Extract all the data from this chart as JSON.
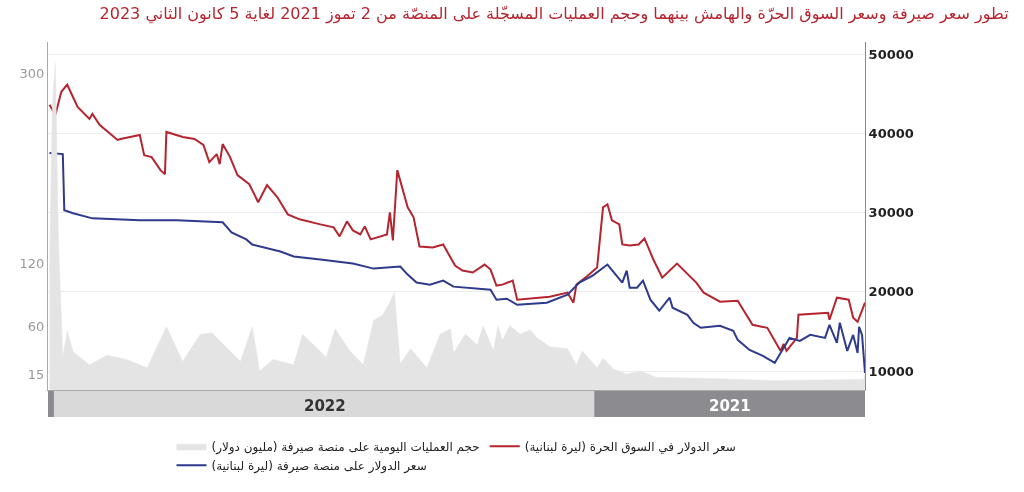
{
  "chart_data": {
    "type": "line",
    "title": "تطور سعر صيرفة وسعر السوق الحرّة والهامش بينهما وحجم العمليات المسجّلة على المنصّة من 2 تموز 2021 لغاية 5 كانون الثاني 2023",
    "xlim": [
      "2023-01-05",
      "2021-07-02"
    ],
    "xticks": [
      {
        "value": "2022-07-02",
        "label": "2022"
      },
      {
        "value": "2021-10-01",
        "label": "2021"
      }
    ],
    "ylim": [
      7600,
      51600
    ],
    "yticks": [
      10000,
      20000,
      30000,
      40000,
      50000
    ],
    "y2lim": [
      0,
      330
    ],
    "y2ticks": [
      15,
      60,
      120,
      300
    ],
    "grid": "y",
    "legend": "bottom",
    "marker": "none",
    "line_style": "solid",
    "series": [
      {
        "name": "حجم العمليات اليومية على منصة صيرفة (مليون دولار)",
        "type": "area",
        "axis": "y2",
        "color": "#e4e4e4",
        "x": [
          "2021-07-02",
          "2021-07-03",
          "2021-09-02",
          "2021-10-17",
          "2021-11-20",
          "2021-12-01",
          "2021-12-10",
          "2021-12-19",
          "2021-12-26",
          "2021-12-30",
          "2022-01-09",
          "2022-01-13",
          "2022-01-19",
          "2022-01-31",
          "2022-02-09",
          "2022-02-13",
          "2022-02-20",
          "2022-02-27",
          "2022-03-04",
          "2022-03-07",
          "2022-03-10",
          "2022-03-17",
          "2022-03-21",
          "2022-03-29",
          "2022-04-06",
          "2022-04-08",
          "2022-04-15",
          "2022-04-24",
          "2022-05-05",
          "2022-05-12",
          "2022-05-16",
          "2022-05-19",
          "2022-05-24",
          "2022-05-30",
          "2022-06-06",
          "2022-06-15",
          "2022-06-25",
          "2022-07-01",
          "2022-07-17",
          "2022-07-23",
          "2022-08-06",
          "2022-08-15",
          "2022-08-20",
          "2022-08-28",
          "2022-09-16",
          "2022-09-24",
          "2022-10-06",
          "2022-10-17",
          "2022-10-30",
          "2022-11-13",
          "2022-11-26",
          "2022-12-08",
          "2022-12-19",
          "2022-12-23",
          "2022-12-26",
          "2022-12-29",
          "2022-12-31",
          "2023-01-02",
          "2023-01-04"
        ],
        "values": [
          14,
          10,
          9,
          11,
          12,
          18,
          15,
          20,
          30,
          21,
          37,
          24,
          39,
          41,
          50,
          57,
          53,
          61,
          47,
          61,
          37,
          61,
          43,
          53,
          35,
          58,
          53,
          21,
          39,
          25,
          93,
          83,
          71,
          66,
          24,
          37,
          58,
          31,
          53,
          24,
          29,
          18,
          60,
          27,
          54,
          53,
          27,
          60,
          21,
          29,
          33,
          24,
          36,
          56,
          31,
          143,
          310,
          272,
          111
        ]
      },
      {
        "name": "سعر الدولار في السوق الحرة (ليرة لبنانية)",
        "color": "#b5252f",
        "x": [
          "2021-07-02",
          "2021-07-07",
          "2021-07-10",
          "2021-07-13",
          "2021-07-21",
          "2021-07-26",
          "2021-07-27",
          "2021-08-06",
          "2021-08-16",
          "2021-08-17",
          "2021-08-24",
          "2021-08-26",
          "2021-08-28",
          "2021-09-06",
          "2021-09-16",
          "2021-09-26",
          "2021-10-08",
          "2021-10-19",
          "2021-10-24",
          "2021-11-06",
          "2021-11-16",
          "2021-11-22",
          "2021-11-28",
          "2021-12-02",
          "2021-12-08",
          "2021-12-13",
          "2021-12-15",
          "2021-12-20",
          "2021-12-23",
          "2021-12-26",
          "2021-12-30",
          "2022-01-06",
          "2022-01-13",
          "2022-01-15",
          "2022-01-19",
          "2022-01-31",
          "2022-02-22",
          "2022-02-25",
          "2022-03-04",
          "2022-03-08",
          "2022-03-12",
          "2022-03-16",
          "2022-03-24",
          "2022-03-31",
          "2022-04-05",
          "2022-04-13",
          "2022-04-20",
          "2022-04-29",
          "2022-05-03",
          "2022-05-07",
          "2022-05-14",
          "2022-05-17",
          "2022-05-19",
          "2022-05-21",
          "2022-06-01",
          "2022-06-05",
          "2022-06-08",
          "2022-06-13",
          "2022-06-17",
          "2022-06-22",
          "2022-06-26",
          "2022-07-05",
          "2022-07-19",
          "2022-07-27",
          "2022-08-03",
          "2022-08-10",
          "2022-08-16",
          "2022-08-22",
          "2022-08-30",
          "2022-09-04",
          "2022-09-09",
          "2022-09-11",
          "2022-09-13",
          "2022-09-18",
          "2022-09-22",
          "2022-09-28",
          "2022-10-06",
          "2022-10-17",
          "2022-10-18",
          "2022-10-21",
          "2022-10-27",
          "2022-11-01",
          "2022-11-04",
          "2022-11-17",
          "2022-11-19",
          "2022-12-01",
          "2022-12-06",
          "2022-12-08",
          "2022-12-16",
          "2022-12-23",
          "2022-12-27",
          "2022-12-31",
          "2023-01-04"
        ],
        "values": [
          18640,
          16220,
          16730,
          19020,
          19270,
          16480,
          17370,
          17240,
          17110,
          14190,
          12540,
          13430,
          12540,
          15460,
          15840,
          18890,
          18760,
          19910,
          21180,
          23590,
          21810,
          24100,
          26760,
          26000,
          25880,
          26000,
          28540,
          29050,
          31080,
          30700,
          23080,
          21940,
          20920,
          18640,
          19910,
          19400,
          19020,
          21430,
          20920,
          20800,
          22830,
          23460,
          22450,
          22700,
          23340,
          26000,
          25620,
          25750,
          29430,
          30700,
          35400,
          26510,
          30070,
          27270,
          26640,
          28290,
          27270,
          27780,
          28920,
          27020,
          28160,
          28540,
          29180,
          29810,
          31970,
          33500,
          31340,
          33620,
          34770,
          37050,
          38700,
          36160,
          37430,
          36420,
          38580,
          39340,
          39590,
          40230,
          34890,
          35400,
          37050,
          37300,
          39850,
          39340,
          39210,
          41110,
          42510,
          41870,
          43400,
          46200,
          45310,
          42390,
          43660
        ]
      },
      {
        "name": "سعر الدولار على منصة صيرفة (ليرة لبنانية)",
        "color": "#2e3a8c",
        "x": [
          "2021-07-02",
          "2021-07-04",
          "2021-07-06",
          "2021-07-07",
          "2021-07-10",
          "2021-07-14",
          "2021-07-19",
          "2021-07-21",
          "2021-07-26",
          "2021-07-29",
          "2021-08-08",
          "2021-08-15",
          "2021-08-22",
          "2021-09-01",
          "2021-09-09",
          "2021-09-18",
          "2021-09-26",
          "2021-09-29",
          "2021-10-08",
          "2021-10-21",
          "2021-10-26",
          "2021-10-30",
          "2021-11-09",
          "2021-11-11",
          "2021-11-18",
          "2021-11-24",
          "2021-11-29",
          "2021-12-03",
          "2021-12-08",
          "2021-12-10",
          "2021-12-13",
          "2021-12-23",
          "2022-01-02",
          "2022-01-11",
          "2022-01-19",
          "2022-02-02",
          "2022-02-22",
          "2022-03-01",
          "2022-03-08",
          "2022-03-12",
          "2022-04-06",
          "2022-04-13",
          "2022-04-22",
          "2022-05-01",
          "2022-05-07",
          "2022-05-12",
          "2022-05-30",
          "2022-06-13",
          "2022-07-05",
          "2022-07-23",
          "2022-08-01",
          "2022-08-20",
          "2022-08-24",
          "2022-09-03",
          "2022-09-09",
          "2022-10-10",
          "2022-11-04",
          "2022-12-06",
          "2022-12-19",
          "2022-12-25",
          "2022-12-26",
          "2023-01-04"
        ],
        "values": [
          9750,
          14570,
          15590,
          12290,
          14570,
          12540,
          16100,
          13560,
          15840,
          14190,
          14570,
          13810,
          14190,
          11020,
          11910,
          12670,
          13940,
          15080,
          15720,
          15460,
          16100,
          17110,
          18000,
          19270,
          17620,
          19020,
          21430,
          20540,
          20540,
          22700,
          21180,
          23460,
          22070,
          21180,
          19650,
          18640,
          18380,
          19140,
          19020,
          20290,
          20670,
          21430,
          20920,
          21180,
          22190,
          23210,
          22950,
          23590,
          24100,
          24480,
          25110,
          26000,
          26640,
          27530,
          28800,
          29050,
          29050,
          29300,
          29940,
          30320,
          37430,
          37560
        ]
      }
    ]
  }
}
